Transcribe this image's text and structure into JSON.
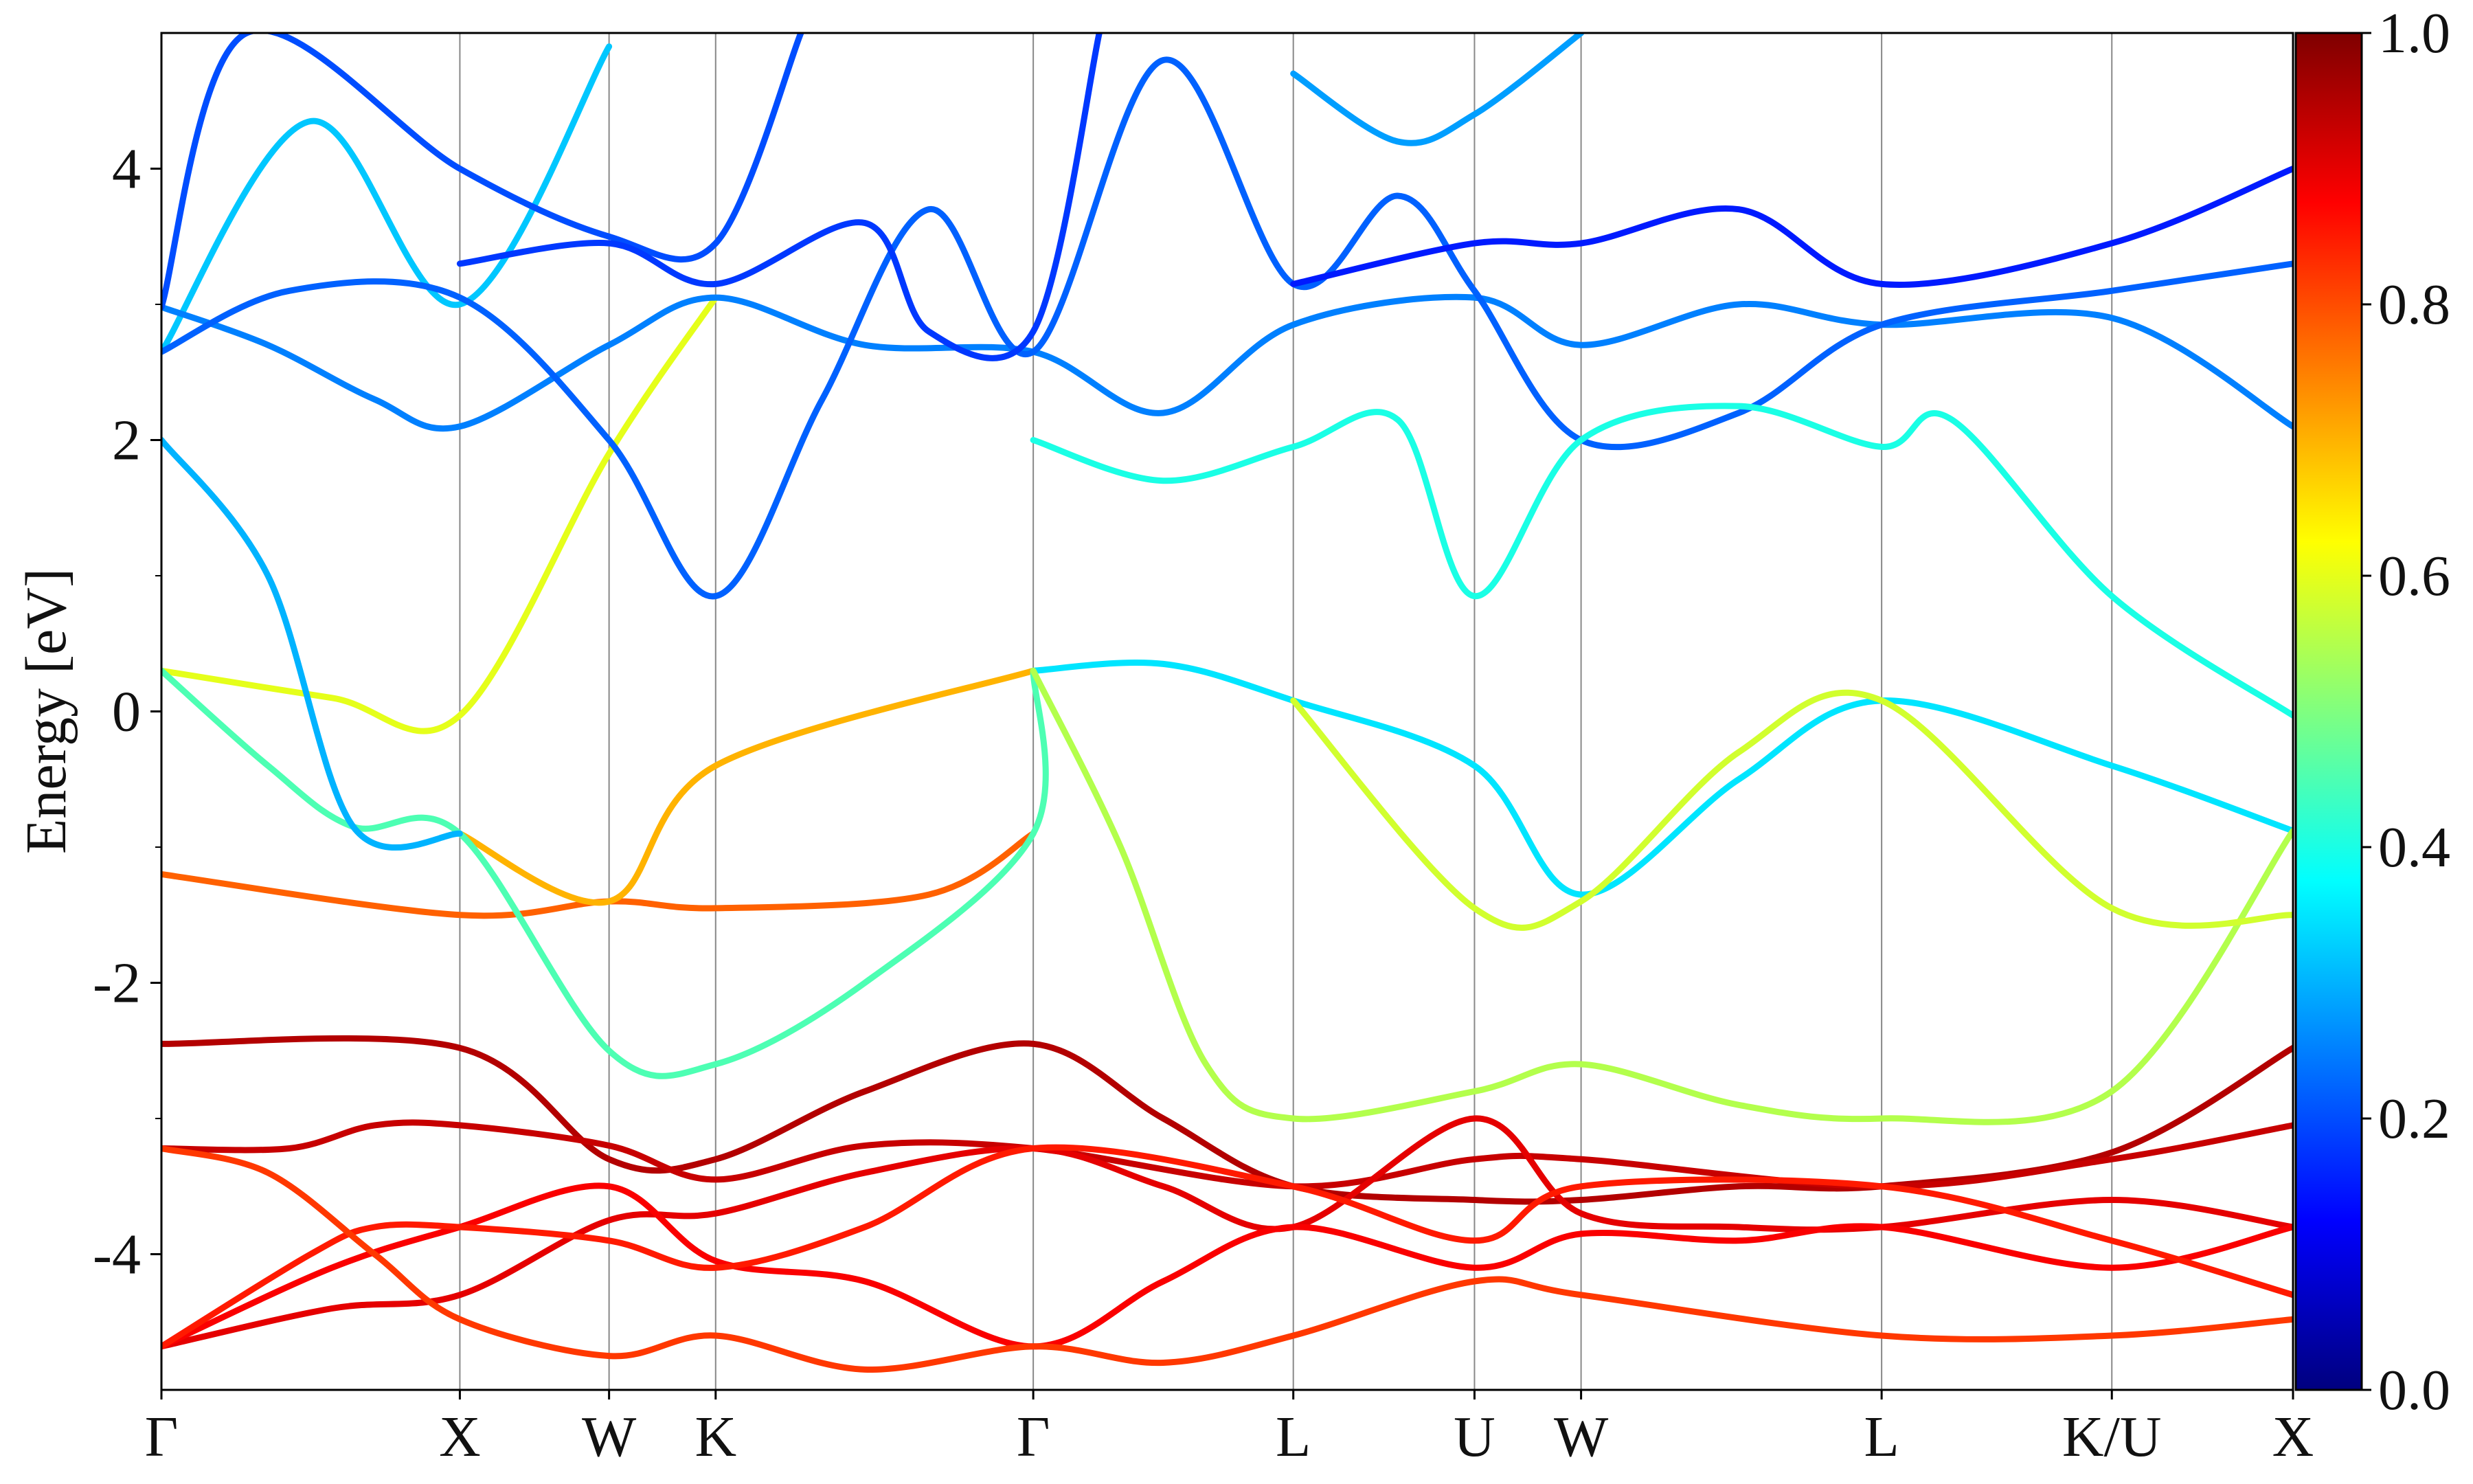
{
  "chart_data": {
    "type": "line",
    "title": "",
    "xlabel": "",
    "ylabel": "Energy [eV]",
    "ylim": [
      -5,
      5
    ],
    "xlim": [
      0,
      10
    ],
    "yticks": [
      4,
      2,
      0,
      -2,
      -4
    ],
    "ytick_labels": [
      "4",
      "2",
      "0",
      "-2",
      "-4"
    ],
    "minor_ytick_step": 1,
    "xticks": [
      {
        "label": "Γ",
        "x": 0.0
      },
      {
        "label": "X",
        "x": 1.4
      },
      {
        "label": "W",
        "x": 2.1
      },
      {
        "label": "K",
        "x": 2.6
      },
      {
        "label": "Γ",
        "x": 4.09
      },
      {
        "label": "L",
        "x": 5.31
      },
      {
        "label": "U",
        "x": 6.16
      },
      {
        "label": "W",
        "x": 6.66
      },
      {
        "label": "L",
        "x": 8.07
      },
      {
        "label": "K/U",
        "x": 9.15
      },
      {
        "label": "X",
        "x": 10.0
      }
    ],
    "grid": "vertical lines at high-symmetry points",
    "colormap": "jet",
    "colorbar": {
      "min": 0.0,
      "max": 1.0,
      "ticks": [
        "0.0",
        "0.2",
        "0.4",
        "0.6",
        "0.8",
        "1.0"
      ]
    },
    "series": [
      {
        "weight": 0.95,
        "points": [
          [
            0,
            -2.45
          ],
          [
            1.4,
            -2.48
          ],
          [
            2.1,
            -3.3
          ],
          [
            2.6,
            -3.3
          ],
          [
            3.3,
            -2.8
          ],
          [
            4.09,
            -2.45
          ],
          [
            4.7,
            -3.0
          ],
          [
            5.31,
            -3.5
          ],
          [
            6.16,
            -3.6
          ],
          [
            6.66,
            -3.6
          ],
          [
            7.4,
            -3.5
          ],
          [
            8.07,
            -3.5
          ],
          [
            9.15,
            -3.25
          ],
          [
            10.0,
            -2.48
          ]
        ]
      },
      {
        "weight": 0.93,
        "points": [
          [
            0,
            -3.22
          ],
          [
            0.6,
            -3.22
          ],
          [
            1.0,
            -3.05
          ],
          [
            1.4,
            -3.05
          ],
          [
            2.1,
            -3.2
          ],
          [
            2.6,
            -3.45
          ],
          [
            3.3,
            -3.2
          ],
          [
            4.09,
            -3.22
          ],
          [
            5.31,
            -3.5
          ],
          [
            6.16,
            -3.3
          ],
          [
            6.66,
            -3.3
          ],
          [
            8.07,
            -3.5
          ],
          [
            9.15,
            -3.3
          ],
          [
            10.0,
            -3.05
          ]
        ]
      },
      {
        "weight": 0.9,
        "points": [
          [
            0,
            -4.68
          ],
          [
            0.8,
            -4.4
          ],
          [
            1.4,
            -4.3
          ],
          [
            2.1,
            -3.75
          ],
          [
            2.6,
            -3.7
          ],
          [
            3.3,
            -3.4
          ],
          [
            4.09,
            -3.22
          ],
          [
            4.7,
            -3.5
          ],
          [
            5.31,
            -3.8
          ],
          [
            6.16,
            -3.0
          ],
          [
            6.66,
            -3.7
          ],
          [
            7.4,
            -3.8
          ],
          [
            8.07,
            -3.8
          ],
          [
            9.15,
            -3.6
          ],
          [
            10.0,
            -3.8
          ]
        ]
      },
      {
        "weight": 0.88,
        "points": [
          [
            0,
            -4.68
          ],
          [
            0.8,
            -4.1
          ],
          [
            1.4,
            -3.8
          ],
          [
            2.1,
            -3.5
          ],
          [
            2.6,
            -4.05
          ],
          [
            3.3,
            -4.2
          ],
          [
            4.09,
            -4.68
          ],
          [
            4.7,
            -4.2
          ],
          [
            5.31,
            -3.8
          ],
          [
            6.16,
            -4.1
          ],
          [
            6.66,
            -3.85
          ],
          [
            7.4,
            -3.9
          ],
          [
            8.07,
            -3.8
          ],
          [
            9.15,
            -4.1
          ],
          [
            10.0,
            -3.8
          ]
        ]
      },
      {
        "weight": 0.85,
        "points": [
          [
            0,
            -4.68
          ],
          [
            0.7,
            -4.0
          ],
          [
            1.0,
            -3.8
          ],
          [
            1.4,
            -3.8
          ],
          [
            2.1,
            -3.9
          ],
          [
            2.6,
            -4.1
          ],
          [
            3.3,
            -3.8
          ],
          [
            4.09,
            -3.22
          ],
          [
            5.31,
            -3.5
          ],
          [
            6.16,
            -3.9
          ],
          [
            6.66,
            -3.5
          ],
          [
            8.07,
            -3.5
          ],
          [
            9.15,
            -3.9
          ],
          [
            10.0,
            -4.3
          ]
        ]
      },
      {
        "weight": 0.82,
        "points": [
          [
            0,
            -3.22
          ],
          [
            0.5,
            -3.4
          ],
          [
            1.0,
            -4.0
          ],
          [
            1.4,
            -4.48
          ],
          [
            2.1,
            -4.75
          ],
          [
            2.6,
            -4.6
          ],
          [
            3.3,
            -4.85
          ],
          [
            4.09,
            -4.68
          ],
          [
            4.7,
            -4.8
          ],
          [
            5.31,
            -4.6
          ],
          [
            6.16,
            -4.2
          ],
          [
            6.66,
            -4.3
          ],
          [
            8.07,
            -4.6
          ],
          [
            9.15,
            -4.6
          ],
          [
            10.0,
            -4.48
          ]
        ]
      },
      {
        "weight": 0.78,
        "points": [
          [
            0,
            -1.2
          ],
          [
            1.4,
            -1.5
          ],
          [
            2.1,
            -1.4
          ],
          [
            2.6,
            -1.45
          ],
          [
            3.6,
            -1.35
          ],
          [
            4.09,
            -0.9
          ]
        ]
      },
      {
        "weight": 0.7,
        "points": [
          [
            1.4,
            -0.9
          ],
          [
            2.1,
            -1.4
          ],
          [
            2.6,
            -0.4
          ],
          [
            4.09,
            0.3
          ]
        ]
      },
      {
        "weight": 0.6,
        "points": [
          [
            0,
            0.3
          ],
          [
            0.8,
            0.1
          ],
          [
            1.4,
            -0.03
          ],
          [
            2.1,
            1.9
          ],
          [
            2.6,
            3.05
          ]
        ]
      },
      {
        "weight": 0.45,
        "points": [
          [
            0,
            0.3
          ],
          [
            0.5,
            -0.4
          ],
          [
            0.9,
            -0.85
          ],
          [
            1.4,
            -0.9
          ],
          [
            2.1,
            -2.5
          ],
          [
            2.6,
            -2.6
          ],
          [
            3.3,
            -2.0
          ],
          [
            4.09,
            -0.9
          ],
          [
            4.09,
            0.3
          ]
        ]
      },
      {
        "weight": 0.35,
        "points": [
          [
            4.09,
            0.3
          ],
          [
            4.7,
            0.35
          ],
          [
            5.31,
            0.08
          ],
          [
            6.16,
            -0.4
          ],
          [
            6.66,
            -1.35
          ],
          [
            7.4,
            -0.5
          ],
          [
            8.07,
            0.08
          ],
          [
            9.15,
            -0.4
          ],
          [
            10.0,
            -0.88
          ]
        ]
      },
      {
        "weight": 0.55,
        "points": [
          [
            4.09,
            0.3
          ],
          [
            4.5,
            -1.0
          ],
          [
            4.9,
            -2.6
          ],
          [
            5.31,
            -3.0
          ],
          [
            6.16,
            -2.8
          ],
          [
            6.66,
            -2.6
          ],
          [
            7.4,
            -2.9
          ],
          [
            8.07,
            -3.0
          ],
          [
            9.15,
            -2.8
          ],
          [
            10.0,
            -0.88
          ]
        ]
      },
      {
        "weight": 0.58,
        "points": [
          [
            5.31,
            0.08
          ],
          [
            6.16,
            -1.45
          ],
          [
            6.66,
            -1.4
          ],
          [
            7.4,
            -0.3
          ],
          [
            8.07,
            0.08
          ],
          [
            9.15,
            -1.45
          ],
          [
            10.0,
            -1.5
          ]
        ]
      },
      {
        "weight": 0.3,
        "points": [
          [
            0,
            2.0
          ],
          [
            0.5,
            1.0
          ],
          [
            0.9,
            -0.85
          ],
          [
            1.4,
            -0.9
          ]
        ]
      },
      {
        "weight": 0.32,
        "points": [
          [
            0,
            2.65
          ],
          [
            0.7,
            4.35
          ],
          [
            1.4,
            3.0
          ],
          [
            2.1,
            4.9
          ]
        ]
      },
      {
        "weight": 0.25,
        "points": [
          [
            0,
            2.98
          ],
          [
            0.5,
            2.7
          ],
          [
            1.0,
            2.3
          ],
          [
            1.4,
            2.1
          ],
          [
            2.1,
            2.7
          ],
          [
            2.6,
            3.05
          ],
          [
            3.3,
            2.7
          ],
          [
            4.09,
            2.65
          ],
          [
            4.7,
            2.2
          ],
          [
            5.31,
            2.85
          ],
          [
            6.16,
            3.05
          ],
          [
            6.66,
            2.7
          ],
          [
            7.4,
            3.0
          ],
          [
            8.07,
            2.85
          ],
          [
            9.15,
            2.9
          ],
          [
            10.0,
            2.1
          ]
        ]
      },
      {
        "weight": 0.22,
        "points": [
          [
            0,
            2.65
          ],
          [
            0.6,
            3.1
          ],
          [
            1.4,
            3.05
          ],
          [
            2.1,
            2.0
          ],
          [
            2.6,
            0.85
          ],
          [
            3.1,
            2.3
          ],
          [
            3.6,
            3.7
          ],
          [
            4.09,
            2.65
          ],
          [
            4.7,
            4.8
          ],
          [
            5.31,
            3.15
          ],
          [
            5.8,
            3.8
          ],
          [
            6.16,
            3.1
          ],
          [
            6.66,
            2.0
          ],
          [
            7.4,
            2.2
          ],
          [
            8.07,
            2.85
          ],
          [
            9.15,
            3.1
          ],
          [
            10.0,
            3.3
          ]
        ]
      },
      {
        "weight": 0.2,
        "points": [
          [
            0,
            2.98
          ],
          [
            0.4,
            5.0
          ],
          [
            1.4,
            4.0
          ],
          [
            2.1,
            3.5
          ],
          [
            2.6,
            3.45
          ],
          [
            3.0,
            5.0
          ]
        ]
      },
      {
        "weight": 0.18,
        "points": [
          [
            1.4,
            3.3
          ],
          [
            2.1,
            3.45
          ],
          [
            2.6,
            3.15
          ],
          [
            3.3,
            3.6
          ],
          [
            3.6,
            2.8
          ],
          [
            4.09,
            2.8
          ],
          [
            4.4,
            5.0
          ]
        ]
      },
      {
        "weight": 0.4,
        "points": [
          [
            4.09,
            2.0
          ],
          [
            4.7,
            1.7
          ],
          [
            5.31,
            1.95
          ],
          [
            5.8,
            2.15
          ],
          [
            6.16,
            0.85
          ],
          [
            6.66,
            2.0
          ],
          [
            7.4,
            2.25
          ],
          [
            8.07,
            1.95
          ],
          [
            8.4,
            2.15
          ],
          [
            9.15,
            0.85
          ],
          [
            10.0,
            -0.03
          ]
        ]
      },
      {
        "weight": 0.28,
        "points": [
          [
            5.31,
            4.7
          ],
          [
            5.8,
            4.2
          ],
          [
            6.16,
            4.4
          ],
          [
            6.66,
            5.0
          ]
        ]
      },
      {
        "weight": 0.15,
        "points": [
          [
            5.31,
            3.15
          ],
          [
            6.16,
            3.45
          ],
          [
            6.66,
            3.45
          ],
          [
            7.4,
            3.7
          ],
          [
            8.07,
            3.15
          ],
          [
            9.15,
            3.45
          ],
          [
            10.0,
            4.0
          ]
        ]
      }
    ]
  }
}
